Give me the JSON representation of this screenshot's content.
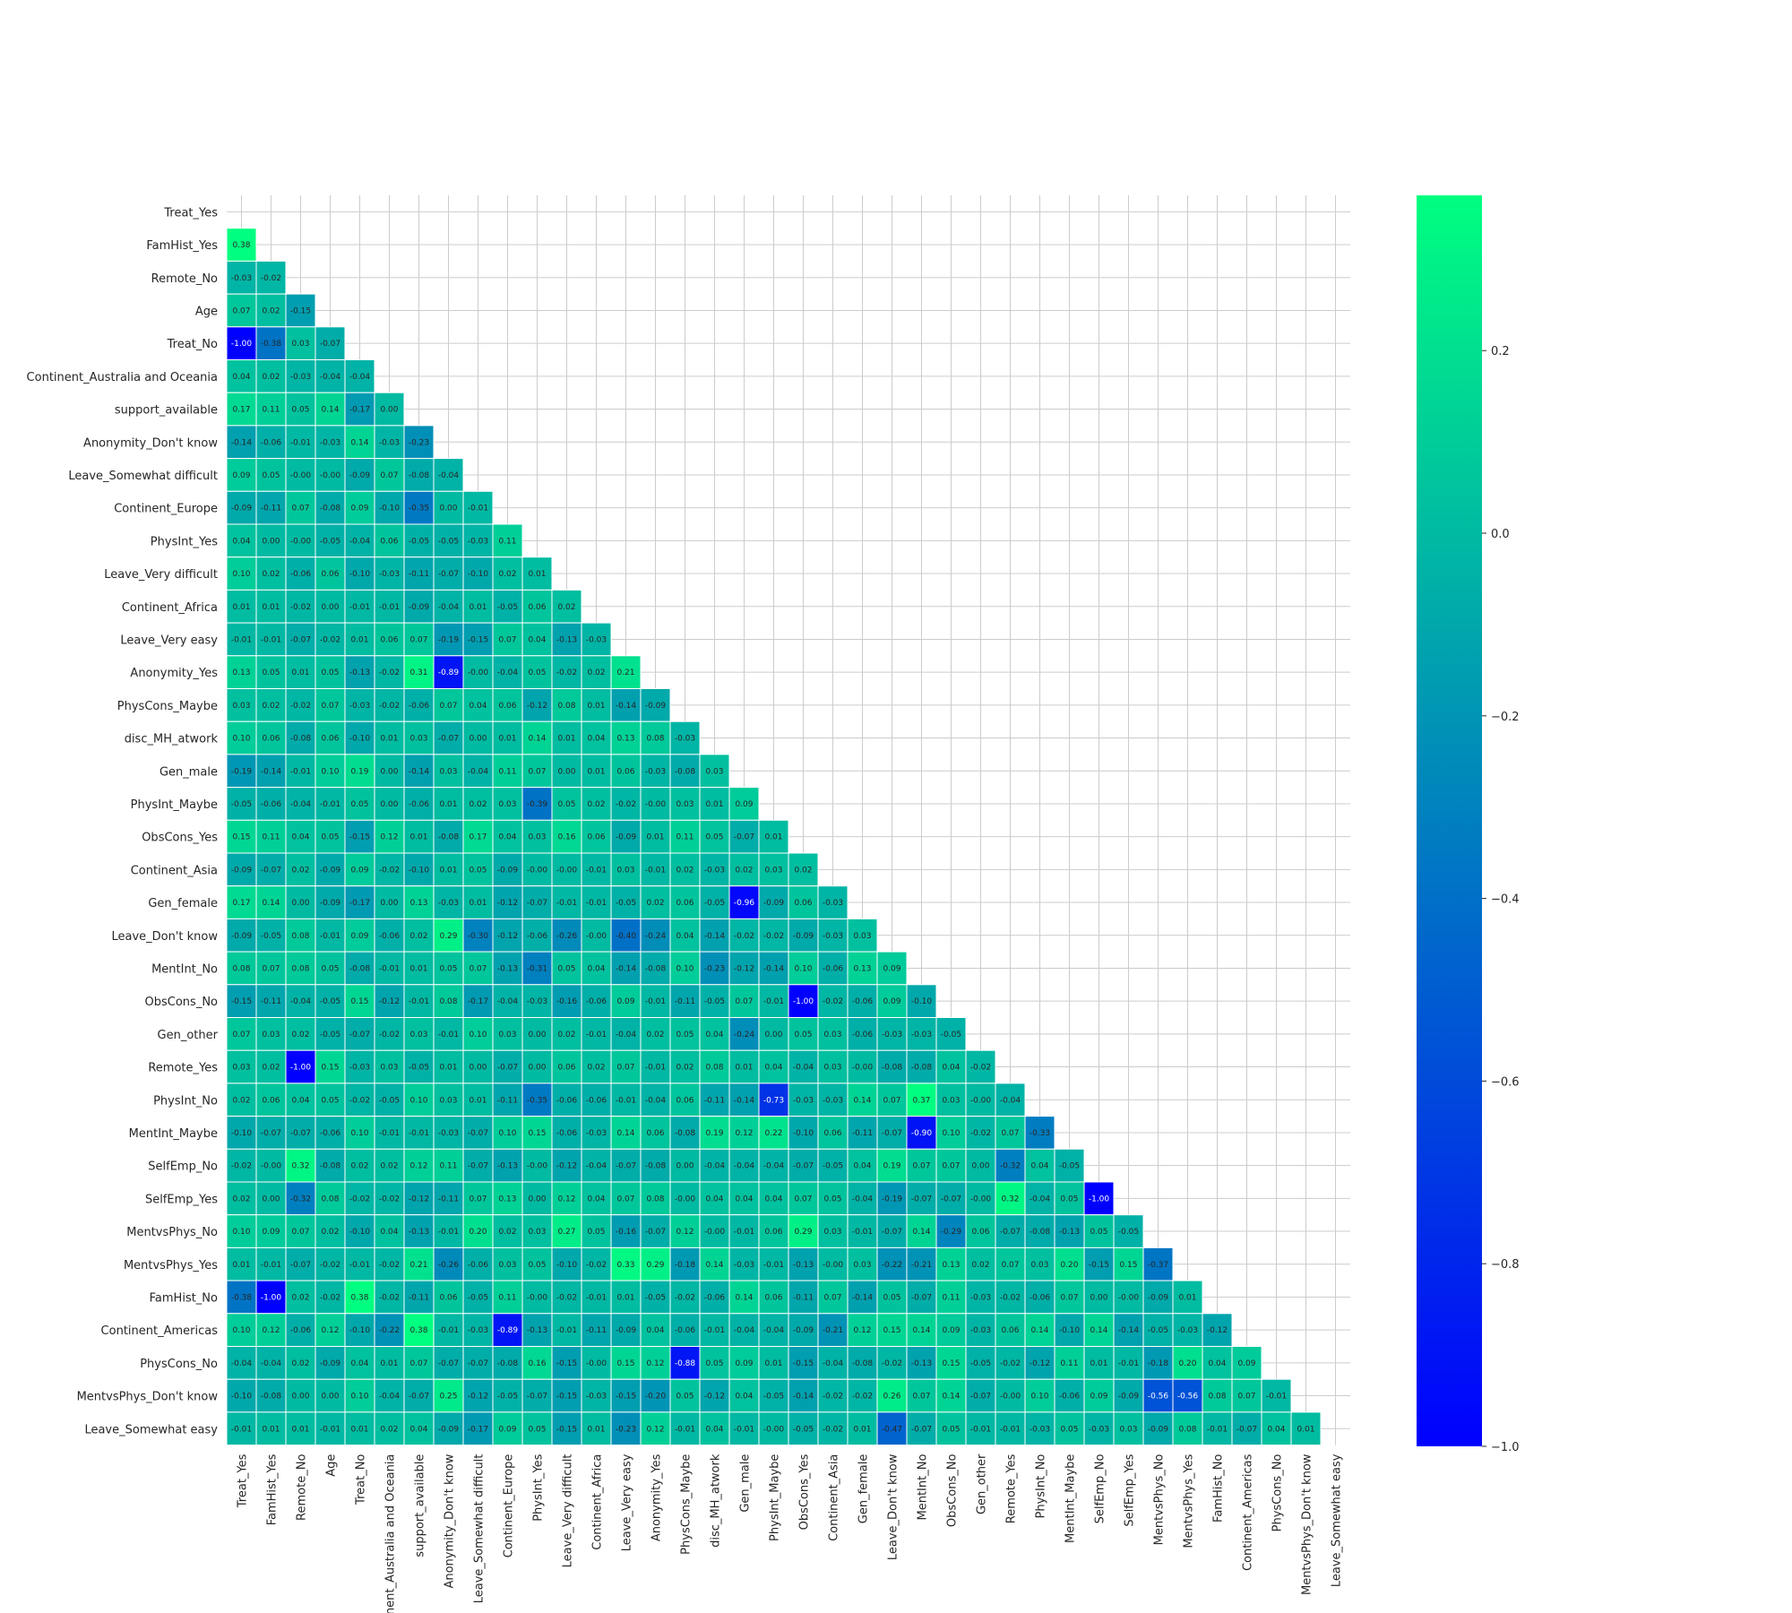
{
  "chart_data": {
    "type": "heatmap",
    "title": "",
    "xlabel": "",
    "ylabel": "",
    "colormap": "winter",
    "vmin": -1.0,
    "vmax": 0.37,
    "mask": "upper-triangle-including-diagonal",
    "grid": true,
    "colorbar": {
      "placement": "right",
      "ticks": [
        0.2,
        0.0,
        -0.2,
        -0.4,
        -0.6,
        -0.8,
        -1.0
      ],
      "tick_labels": [
        "0.2",
        "0.0",
        "−0.2",
        "−0.4",
        "−0.6",
        "−0.8",
        "−1.0"
      ]
    },
    "labels": [
      "Treat_Yes",
      "FamHist_Yes",
      "Remote_No",
      "Age",
      "Treat_No",
      "Continent_Australia and Oceania",
      "support_available",
      "Anonymity_Don't know",
      "Leave_Somewhat difficult",
      "Continent_Europe",
      "PhysInt_Yes",
      "Leave_Very difficult",
      "Continent_Africa",
      "Leave_Very easy",
      "Anonymity_Yes",
      "PhysCons_Maybe",
      "disc_MH_atwork",
      "Gen_male",
      "PhysInt_Maybe",
      "ObsCons_Yes",
      "Continent_Asia",
      "Gen_female",
      "Leave_Don't know",
      "MentInt_No",
      "ObsCons_No",
      "Gen_other",
      "Remote_Yes",
      "PhysInt_No",
      "MentInt_Maybe",
      "SelfEmp_No",
      "SelfEmp_Yes",
      "MentvsPhys_No",
      "MentvsPhys_Yes",
      "FamHist_No",
      "Continent_Americas",
      "PhysCons_No",
      "MentvsPhys_Don't know",
      "Leave_Somewhat easy"
    ],
    "rows": [
      [],
      [
        "0.38"
      ],
      [
        "-0.03",
        "-0.02"
      ],
      [
        "0.07",
        "0.02",
        "-0.15"
      ],
      [
        "-1.00",
        "-0.38",
        "0.03",
        "-0.07"
      ],
      [
        "0.04",
        "0.02",
        "-0.03",
        "-0.04",
        "-0.04"
      ],
      [
        "0.17",
        "0.11",
        "0.05",
        "0.14",
        "-0.17",
        "0.00"
      ],
      [
        "-0.14",
        "-0.06",
        "-0.01",
        "-0.03",
        "0.14",
        "-0.03",
        "-0.23"
      ],
      [
        "0.09",
        "0.05",
        "-0.00",
        "-0.00",
        "-0.09",
        "0.07",
        "-0.08",
        "-0.04"
      ],
      [
        "-0.09",
        "-0.11",
        "0.07",
        "-0.08",
        "0.09",
        "-0.10",
        "-0.35",
        "0.00",
        "-0.01"
      ],
      [
        "0.04",
        "0.00",
        "-0.00",
        "-0.05",
        "-0.04",
        "0.06",
        "-0.05",
        "-0.05",
        "-0.03",
        "0.11"
      ],
      [
        "0.10",
        "0.02",
        "-0.06",
        "0.06",
        "-0.10",
        "-0.03",
        "-0.11",
        "-0.07",
        "-0.10",
        "0.02",
        "0.01"
      ],
      [
        "0.01",
        "0.01",
        "-0.02",
        "0.00",
        "-0.01",
        "-0.01",
        "-0.09",
        "-0.04",
        "0.01",
        "-0.05",
        "0.06",
        "0.02"
      ],
      [
        "-0.01",
        "-0.01",
        "-0.07",
        "-0.02",
        "0.01",
        "0.06",
        "0.07",
        "-0.19",
        "-0.15",
        "0.07",
        "0.04",
        "-0.13",
        "-0.03"
      ],
      [
        "0.13",
        "0.05",
        "0.01",
        "0.05",
        "-0.13",
        "-0.02",
        "0.31",
        "-0.89",
        "-0.00",
        "-0.04",
        "0.05",
        "-0.02",
        "0.02",
        "0.21"
      ],
      [
        "0.03",
        "0.02",
        "-0.02",
        "0.07",
        "-0.03",
        "-0.02",
        "-0.06",
        "0.07",
        "0.04",
        "0.06",
        "-0.12",
        "0.08",
        "0.01",
        "-0.14",
        "-0.09"
      ],
      [
        "0.10",
        "0.06",
        "-0.08",
        "0.06",
        "-0.10",
        "0.01",
        "0.03",
        "-0.07",
        "0.00",
        "0.01",
        "0.14",
        "0.01",
        "0.04",
        "0.13",
        "0.08",
        "-0.03"
      ],
      [
        "-0.19",
        "-0.14",
        "-0.01",
        "0.10",
        "0.19",
        "0.00",
        "-0.14",
        "0.03",
        "-0.04",
        "0.11",
        "0.07",
        "0.00",
        "0.01",
        "0.06",
        "-0.03",
        "-0.08",
        "0.03"
      ],
      [
        "-0.05",
        "-0.06",
        "-0.04",
        "-0.01",
        "0.05",
        "0.00",
        "-0.06",
        "0.01",
        "0.02",
        "0.03",
        "-0.39",
        "0.05",
        "0.02",
        "-0.02",
        "-0.00",
        "0.03",
        "0.01",
        "0.09"
      ],
      [
        "0.15",
        "0.11",
        "0.04",
        "0.05",
        "-0.15",
        "0.12",
        "0.01",
        "-0.08",
        "0.17",
        "0.04",
        "0.03",
        "0.16",
        "0.06",
        "-0.09",
        "0.01",
        "0.11",
        "0.05",
        "-0.07",
        "0.01"
      ],
      [
        "-0.09",
        "-0.07",
        "0.02",
        "-0.09",
        "0.09",
        "-0.02",
        "-0.10",
        "0.01",
        "0.05",
        "-0.09",
        "-0.00",
        "-0.00",
        "-0.01",
        "0.03",
        "-0.01",
        "0.02",
        "-0.03",
        "0.02",
        "0.03",
        "0.02"
      ],
      [
        "0.17",
        "0.14",
        "0.00",
        "-0.09",
        "-0.17",
        "0.00",
        "0.13",
        "-0.03",
        "0.01",
        "-0.12",
        "-0.07",
        "-0.01",
        "-0.01",
        "-0.05",
        "0.02",
        "0.06",
        "-0.05",
        "-0.96",
        "-0.09",
        "0.06",
        "-0.03"
      ],
      [
        "-0.09",
        "-0.05",
        "0.08",
        "-0.01",
        "0.09",
        "-0.06",
        "0.02",
        "0.29",
        "-0.30",
        "-0.12",
        "-0.06",
        "-0.26",
        "-0.00",
        "-0.40",
        "-0.24",
        "0.04",
        "-0.14",
        "-0.02",
        "-0.02",
        "-0.09",
        "-0.03",
        "0.03"
      ],
      [
        "0.08",
        "0.07",
        "0.08",
        "0.05",
        "-0.08",
        "-0.01",
        "0.01",
        "0.05",
        "0.07",
        "-0.13",
        "-0.31",
        "0.05",
        "0.04",
        "-0.14",
        "-0.08",
        "0.10",
        "-0.23",
        "-0.12",
        "-0.14",
        "0.10",
        "-0.06",
        "0.13",
        "0.09"
      ],
      [
        "-0.15",
        "-0.11",
        "-0.04",
        "-0.05",
        "0.15",
        "-0.12",
        "-0.01",
        "0.08",
        "-0.17",
        "-0.04",
        "-0.03",
        "-0.16",
        "-0.06",
        "0.09",
        "-0.01",
        "-0.11",
        "-0.05",
        "0.07",
        "-0.01",
        "-1.00",
        "-0.02",
        "-0.06",
        "0.09",
        "-0.10"
      ],
      [
        "0.07",
        "0.03",
        "0.02",
        "-0.05",
        "-0.07",
        "-0.02",
        "0.03",
        "-0.01",
        "0.10",
        "0.03",
        "0.00",
        "0.02",
        "-0.01",
        "-0.04",
        "0.02",
        "0.05",
        "0.04",
        "-0.24",
        "0.00",
        "0.05",
        "0.03",
        "-0.06",
        "-0.03",
        "-0.03",
        "-0.05"
      ],
      [
        "0.03",
        "0.02",
        "-1.00",
        "0.15",
        "-0.03",
        "0.03",
        "-0.05",
        "0.01",
        "0.00",
        "-0.07",
        "0.00",
        "0.06",
        "0.02",
        "0.07",
        "-0.01",
        "0.02",
        "0.08",
        "0.01",
        "0.04",
        "-0.04",
        "0.03",
        "-0.00",
        "-0.08",
        "-0.08",
        "0.04",
        "-0.02"
      ],
      [
        "0.02",
        "0.06",
        "0.04",
        "0.05",
        "-0.02",
        "-0.05",
        "0.10",
        "0.03",
        "0.01",
        "-0.11",
        "-0.35",
        "-0.06",
        "-0.06",
        "-0.01",
        "-0.04",
        "0.06",
        "-0.11",
        "-0.14",
        "-0.73",
        "-0.03",
        "-0.03",
        "0.14",
        "0.07",
        "0.37",
        "0.03",
        "-0.00",
        "-0.04"
      ],
      [
        "-0.10",
        "-0.07",
        "-0.07",
        "-0.06",
        "0.10",
        "-0.01",
        "-0.01",
        "-0.03",
        "-0.07",
        "0.10",
        "0.15",
        "-0.06",
        "-0.03",
        "0.14",
        "0.06",
        "-0.08",
        "0.19",
        "0.12",
        "0.22",
        "-0.10",
        "0.06",
        "-0.11",
        "-0.07",
        "-0.90",
        "0.10",
        "-0.02",
        "0.07",
        "-0.33"
      ],
      [
        "-0.02",
        "-0.00",
        "0.32",
        "-0.08",
        "0.02",
        "0.02",
        "0.12",
        "0.11",
        "-0.07",
        "-0.13",
        "-0.00",
        "-0.12",
        "-0.04",
        "-0.07",
        "-0.08",
        "0.00",
        "-0.04",
        "-0.04",
        "-0.04",
        "-0.07",
        "-0.05",
        "0.04",
        "0.19",
        "0.07",
        "0.07",
        "0.00",
        "-0.32",
        "0.04",
        "-0.05"
      ],
      [
        "0.02",
        "0.00",
        "-0.32",
        "0.08",
        "-0.02",
        "-0.02",
        "-0.12",
        "-0.11",
        "0.07",
        "0.13",
        "0.00",
        "0.12",
        "0.04",
        "0.07",
        "0.08",
        "-0.00",
        "0.04",
        "0.04",
        "0.04",
        "0.07",
        "0.05",
        "-0.04",
        "-0.19",
        "-0.07",
        "-0.07",
        "-0.00",
        "0.32",
        "-0.04",
        "0.05",
        "-1.00"
      ],
      [
        "0.10",
        "0.09",
        "0.07",
        "0.02",
        "-0.10",
        "0.04",
        "-0.13",
        "-0.01",
        "0.20",
        "0.02",
        "0.03",
        "0.27",
        "0.05",
        "-0.16",
        "-0.07",
        "0.12",
        "-0.00",
        "-0.01",
        "0.06",
        "0.29",
        "0.03",
        "-0.01",
        "-0.07",
        "0.14",
        "-0.29",
        "0.06",
        "-0.07",
        "-0.08",
        "-0.13",
        "0.05",
        "-0.05"
      ],
      [
        "0.01",
        "-0.01",
        "-0.07",
        "-0.02",
        "-0.01",
        "-0.02",
        "0.21",
        "-0.26",
        "-0.06",
        "0.03",
        "0.05",
        "-0.10",
        "-0.02",
        "0.33",
        "0.29",
        "-0.18",
        "0.14",
        "-0.03",
        "-0.01",
        "-0.13",
        "-0.00",
        "0.03",
        "-0.22",
        "-0.21",
        "0.13",
        "0.02",
        "0.07",
        "0.03",
        "0.20",
        "-0.15",
        "0.15",
        "-0.37"
      ],
      [
        "-0.38",
        "-1.00",
        "0.02",
        "-0.02",
        "0.38",
        "-0.02",
        "-0.11",
        "0.06",
        "-0.05",
        "0.11",
        "-0.00",
        "-0.02",
        "-0.01",
        "0.01",
        "-0.05",
        "-0.02",
        "-0.06",
        "0.14",
        "0.06",
        "-0.11",
        "0.07",
        "-0.14",
        "0.05",
        "-0.07",
        "0.11",
        "-0.03",
        "-0.02",
        "-0.06",
        "0.07",
        "0.00",
        "-0.00",
        "-0.09",
        "0.01"
      ],
      [
        "0.10",
        "0.12",
        "-0.06",
        "0.12",
        "-0.10",
        "-0.22",
        "0.38",
        "-0.01",
        "-0.03",
        "-0.89",
        "-0.13",
        "-0.01",
        "-0.11",
        "-0.09",
        "0.04",
        "-0.06",
        "-0.01",
        "-0.04",
        "-0.04",
        "-0.09",
        "-0.21",
        "0.12",
        "0.15",
        "0.14",
        "0.09",
        "-0.03",
        "0.06",
        "0.14",
        "-0.10",
        "0.14",
        "-0.14",
        "-0.05",
        "-0.03",
        "-0.12"
      ],
      [
        "-0.04",
        "-0.04",
        "0.02",
        "-0.09",
        "0.04",
        "0.01",
        "0.07",
        "-0.07",
        "-0.07",
        "-0.08",
        "0.16",
        "-0.15",
        "-0.00",
        "0.15",
        "0.12",
        "-0.88",
        "0.05",
        "0.09",
        "0.01",
        "-0.15",
        "-0.04",
        "-0.08",
        "-0.02",
        "-0.13",
        "0.15",
        "-0.05",
        "-0.02",
        "-0.12",
        "0.11",
        "0.01",
        "-0.01",
        "-0.18",
        "0.20",
        "0.04",
        "0.09"
      ],
      [
        "-0.10",
        "-0.08",
        "0.00",
        "0.00",
        "0.10",
        "-0.04",
        "-0.07",
        "0.25",
        "-0.12",
        "-0.05",
        "-0.07",
        "-0.15",
        "-0.03",
        "-0.15",
        "-0.20",
        "0.05",
        "-0.12",
        "0.04",
        "-0.05",
        "-0.14",
        "-0.02",
        "-0.02",
        "0.26",
        "0.07",
        "0.14",
        "-0.07",
        "-0.00",
        "0.10",
        "-0.06",
        "0.09",
        "-0.09",
        "-0.56",
        "-0.56",
        "0.08",
        "0.07",
        "-0.01"
      ],
      [
        "-0.01",
        "0.01",
        "0.01",
        "-0.01",
        "0.01",
        "0.02",
        "0.04",
        "-0.09",
        "-0.17",
        "0.09",
        "0.05",
        "-0.15",
        "0.01",
        "-0.23",
        "0.12",
        "-0.01",
        "0.04",
        "-0.01",
        "-0.00",
        "-0.05",
        "-0.02",
        "0.01",
        "-0.47",
        "-0.07",
        "0.05",
        "-0.01",
        "-0.01",
        "-0.03",
        "0.05",
        "-0.03",
        "0.03",
        "-0.09",
        "0.08",
        "-0.01",
        "-0.07",
        "0.04",
        "0.01"
      ]
    ]
  }
}
